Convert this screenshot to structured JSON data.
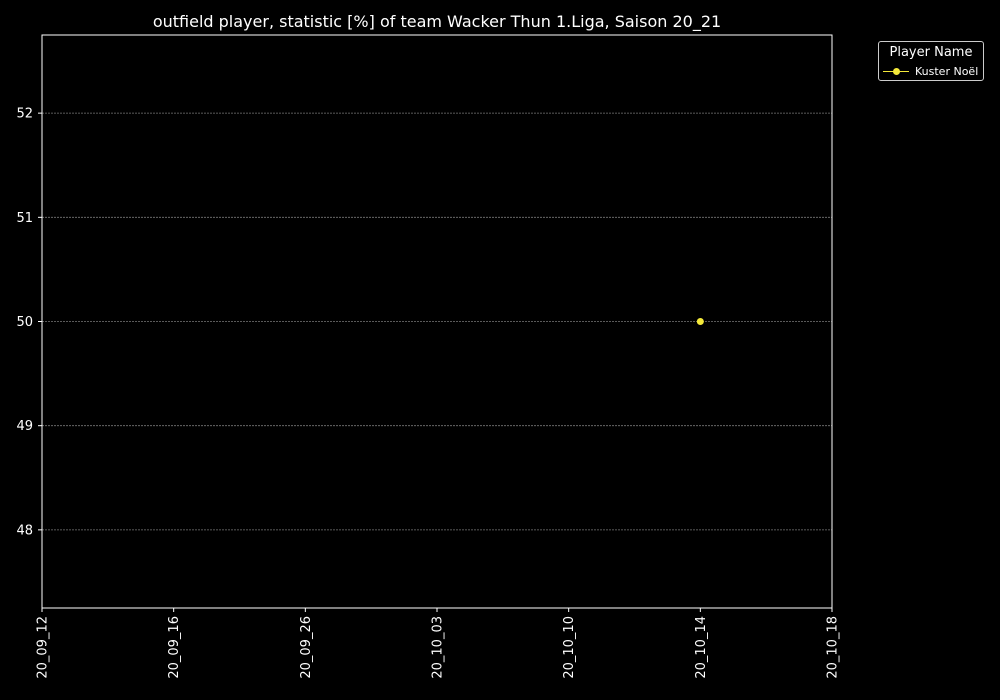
{
  "chart_data": {
    "type": "line",
    "title": "outfield player, statistic [%] of team Wacker Thun 1.Liga, Saison 20_21",
    "xlabel": "",
    "ylabel": "",
    "categories": [
      "20_09_12",
      "20_09_16",
      "20_09_26",
      "20_10_03",
      "20_10_10",
      "20_10_14",
      "20_10_18"
    ],
    "yticks": [
      48,
      49,
      50,
      51,
      52
    ],
    "ylim": [
      47.25,
      52.75
    ],
    "grid": true,
    "legend": {
      "title": "Player Name",
      "placement": "outside-top-right"
    },
    "series": [
      {
        "name": "Kuster Noël",
        "color": "#f4e93a",
        "points": [
          {
            "x": "20_10_14",
            "y": 50
          }
        ]
      }
    ]
  }
}
